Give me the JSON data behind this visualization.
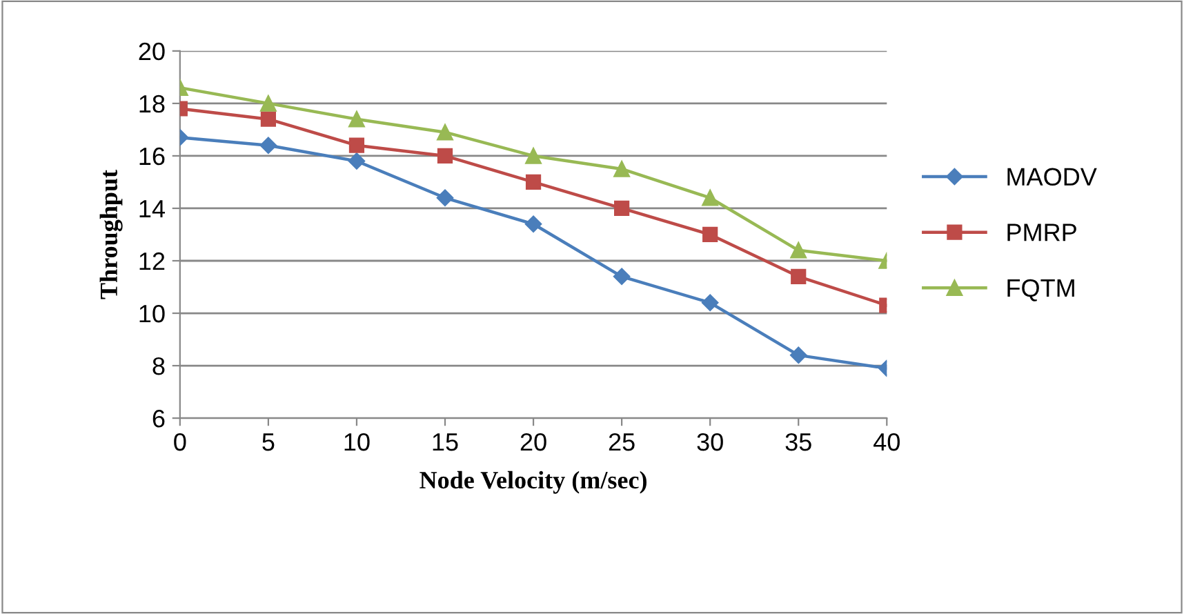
{
  "chart_data": {
    "type": "line",
    "xlabel": "Node Velocity (m/sec)",
    "ylabel": "Throughput",
    "x": [
      0,
      5,
      10,
      15,
      20,
      25,
      30,
      35,
      40
    ],
    "series": [
      {
        "name": "MAODV",
        "color": "#4a7ebb",
        "marker": "diamond",
        "values": [
          16.7,
          16.4,
          15.8,
          14.4,
          13.4,
          11.4,
          10.4,
          8.4,
          7.9
        ]
      },
      {
        "name": "PMRP",
        "color": "#be4b48",
        "marker": "square",
        "values": [
          17.8,
          17.4,
          16.4,
          16.0,
          15.0,
          14.0,
          13.0,
          11.4,
          10.3
        ]
      },
      {
        "name": "FQTM",
        "color": "#98b954",
        "marker": "triangle",
        "values": [
          18.6,
          18.0,
          17.4,
          16.9,
          16.0,
          15.5,
          14.4,
          12.4,
          12.0
        ]
      }
    ],
    "xlim": [
      0,
      40
    ],
    "xticks": [
      0,
      5,
      10,
      15,
      20,
      25,
      30,
      35,
      40
    ],
    "ylim": [
      6,
      20
    ],
    "yticks": [
      6,
      8,
      10,
      12,
      14,
      16,
      18,
      20
    ],
    "grid": "y",
    "legend": "right",
    "line_style": "solid"
  }
}
